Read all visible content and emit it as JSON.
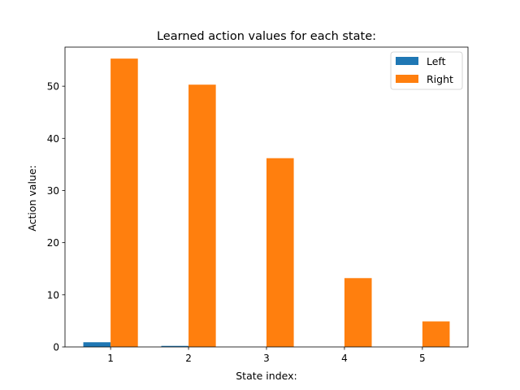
{
  "chart_data": {
    "type": "bar",
    "title": "Learned action values for each state:",
    "xlabel": "State index:",
    "ylabel": "Action value:",
    "categories": [
      "1",
      "2",
      "3",
      "4",
      "5"
    ],
    "ylim": [
      0,
      57.5
    ],
    "yticks": [
      0,
      10,
      20,
      30,
      40,
      50
    ],
    "series": [
      {
        "name": "Left",
        "color": "#1f77b4",
        "values": [
          0.9,
          0.2,
          0.0,
          0.0,
          0.0
        ]
      },
      {
        "name": "Right",
        "color": "#ff7f0e",
        "values": [
          55.3,
          50.3,
          36.2,
          13.2,
          4.9
        ]
      }
    ],
    "legend": "top-right",
    "grid": false
  }
}
